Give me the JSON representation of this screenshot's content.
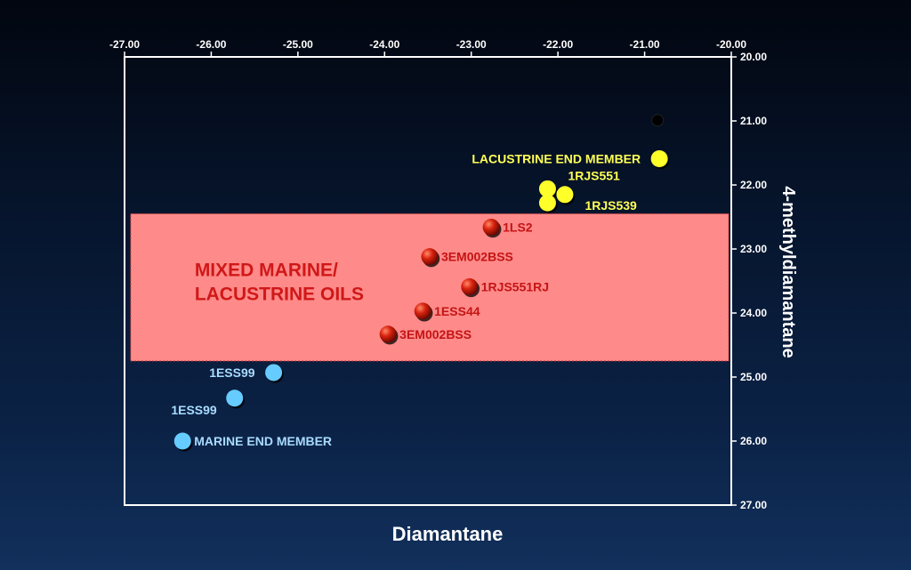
{
  "chart_data": {
    "type": "scatter",
    "title": "",
    "xlabel": "Diamantane",
    "ylabel": "4-methyldiamantane",
    "xlim": [
      -27.0,
      -20.0
    ],
    "ylim": [
      20.0,
      27.0
    ],
    "y_inverted": true,
    "x_axis_position": "top",
    "y_axis_position": "right",
    "grid": false,
    "x_ticks": [
      "-27.00",
      "-26.00",
      "-25.00",
      "-24.00",
      "-23.00",
      "-22.00",
      "-21.00",
      "-20.00"
    ],
    "y_ticks": [
      "20.00",
      "21.00",
      "22.00",
      "23.00",
      "24.00",
      "25.00",
      "26.00",
      "27.00"
    ],
    "region": {
      "label_lines": [
        "MIXED MARINE/",
        "LACUSTRINE OILS"
      ],
      "y_range": [
        22.45,
        24.75
      ],
      "x_range": [
        -26.93,
        -20.03
      ],
      "fill_color": "#ff8a8a",
      "label_color": "#d01818"
    },
    "points": [
      {
        "x": -20.85,
        "y": 20.99,
        "color": "#000000",
        "label": "",
        "label_side": "none"
      },
      {
        "x": -20.83,
        "y": 21.59,
        "color": "#ffff2a",
        "label": "LACUSTRINE END MEMBER",
        "label_side": "left"
      },
      {
        "x": -22.12,
        "y": 22.06,
        "color": "#ffff2a",
        "label": "1RJS551",
        "label_side": "above-right"
      },
      {
        "x": -21.92,
        "y": 22.15,
        "color": "#ffff2a",
        "label": "",
        "label_side": "none"
      },
      {
        "x": -22.12,
        "y": 22.28,
        "color": "#ffff2a",
        "label": "1RJS539",
        "label_side": "right-far"
      },
      {
        "x": -22.77,
        "y": 22.66,
        "color": "#cc1a0a",
        "label": "1LS2",
        "label_side": "right"
      },
      {
        "x": -23.48,
        "y": 23.12,
        "color": "#cc1a0a",
        "label": "3EM002BSS",
        "label_side": "right"
      },
      {
        "x": -23.02,
        "y": 23.59,
        "color": "#cc1a0a",
        "label": "1RJS551RJ",
        "label_side": "right"
      },
      {
        "x": -23.56,
        "y": 23.97,
        "color": "#cc1a0a",
        "label": "1ESS44",
        "label_side": "right"
      },
      {
        "x": -23.96,
        "y": 24.33,
        "color": "#cc1a0a",
        "label": "3EM002BSS",
        "label_side": "right"
      },
      {
        "x": -25.28,
        "y": 24.93,
        "color": "#66ccff",
        "label": "1ESS99",
        "label_side": "left"
      },
      {
        "x": -25.73,
        "y": 25.33,
        "color": "#66ccff",
        "label": "1ESS99",
        "label_side": "below-left"
      },
      {
        "x": -26.33,
        "y": 26.0,
        "color": "#66ccff",
        "label": "MARINE END MEMBER",
        "label_side": "right"
      }
    ],
    "series_colors": {
      "lacustrine": "#ffff2a",
      "mixed": "#cc1a0a",
      "marine": "#66ccff",
      "black_point": "#000000",
      "lacustrine_label": "#ffff55",
      "mixed_label": "#c41414",
      "marine_label": "#a8dcff"
    }
  }
}
